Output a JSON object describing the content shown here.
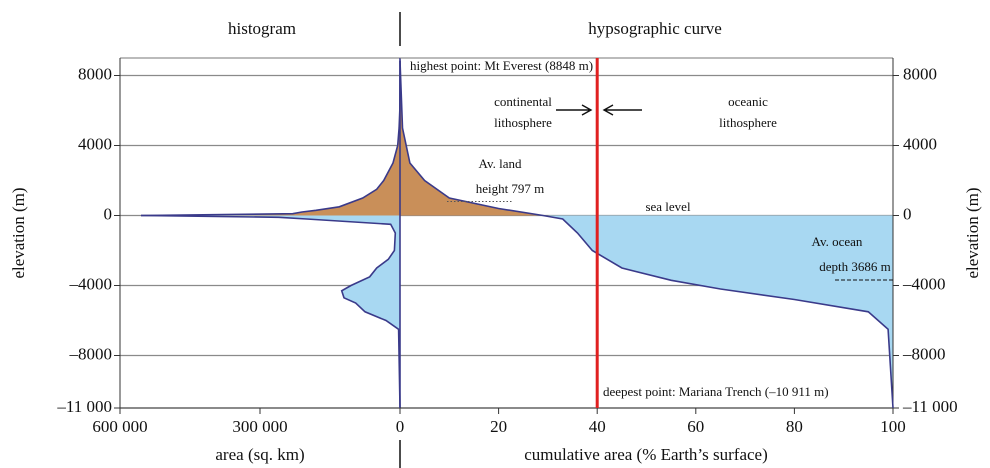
{
  "header": {
    "left": "histogram",
    "right": "hypsographic curve"
  },
  "chart_data": [
    {
      "type": "area",
      "orientation": "horizontal",
      "yaxis_side": "left",
      "xlabel": "area (sq. km)",
      "ylabel": "elevation (m)",
      "xlim": [
        600000,
        0
      ],
      "xticks": [
        {
          "value": 600000,
          "label": "600 000"
        },
        {
          "value": 300000,
          "label": "300 000"
        }
      ],
      "ylim": [
        -11000,
        9000
      ],
      "yticks": [
        8000,
        4000,
        0,
        {
          "value": -4000,
          "label": "–4000"
        },
        {
          "value": -8000,
          "label": "–8000"
        },
        {
          "value": -11000,
          "label": "–11 000"
        }
      ],
      "grid": true,
      "series": [
        {
          "color": "#c98f59",
          "x": [
            555000,
            230000,
            210000,
            180000,
            130000,
            80000,
            50000,
            35000,
            15000,
            5000,
            2000,
            500,
            0
          ],
          "values": [
            0,
            100,
            200,
            300,
            500,
            1000,
            1500,
            2000,
            3000,
            4000,
            5000,
            6000,
            8848
          ]
        },
        {
          "color": "#a8d8f2",
          "x": [
            555000,
            260000,
            200000,
            20000,
            10000,
            12000,
            25000,
            50000,
            65000,
            105000,
            125000,
            120000,
            95000,
            75000,
            30000,
            3000,
            0
          ],
          "values": [
            0,
            -100,
            -200,
            -500,
            -1000,
            -2000,
            -2500,
            -3000,
            -3500,
            -4000,
            -4300,
            -4700,
            -5000,
            -5500,
            -6000,
            -6500,
            -11000
          ]
        }
      ]
    },
    {
      "type": "area",
      "orientation": "vertical",
      "yaxis_side": "right",
      "xlabel": "cumulative area (% Earth’s surface)",
      "ylabel": "elevation (m)",
      "xlim": [
        0,
        100
      ],
      "xticks": [
        0,
        20,
        40,
        60,
        80,
        100
      ],
      "ylim": [
        -11000,
        9000
      ],
      "yticks": [
        8000,
        4000,
        0,
        {
          "value": -4000,
          "label": "–4000"
        },
        {
          "value": -8000,
          "label": "–8000"
        },
        {
          "value": -11000,
          "label": "–11 000"
        }
      ],
      "grid": true,
      "line_color": "#3a3a8a",
      "boundary": 40,
      "boundary_color": "#e02020",
      "land_mean": 797,
      "ocean_mean": -3686,
      "series": [
        {
          "color": "#c98f59",
          "x": [
            0,
            0.5,
            2,
            5,
            10,
            20,
            29
          ],
          "values": [
            8848,
            5000,
            3000,
            2000,
            1000,
            400,
            0
          ]
        },
        {
          "color": "#a8d8f2",
          "x": [
            29,
            33,
            36,
            39,
            45,
            55,
            65,
            80,
            95,
            99,
            100
          ],
          "values": [
            0,
            -200,
            -1000,
            -2000,
            -3000,
            -3700,
            -4200,
            -4800,
            -5500,
            -6500,
            -11000
          ]
        }
      ],
      "annotations": {
        "highest": "highest point: Mt Everest (8848 m)",
        "deepest": "deepest point: Mariana Trench (–10 911 m)",
        "continental": [
          "continental",
          "lithosphere"
        ],
        "oceanic": [
          "oceanic",
          "lithosphere"
        ],
        "land_mean_label": [
          "Av. land",
          "height 797 m"
        ],
        "ocean_mean_label": [
          "Av. ocean",
          "depth 3686 m"
        ],
        "sea_level": "sea level"
      }
    }
  ]
}
